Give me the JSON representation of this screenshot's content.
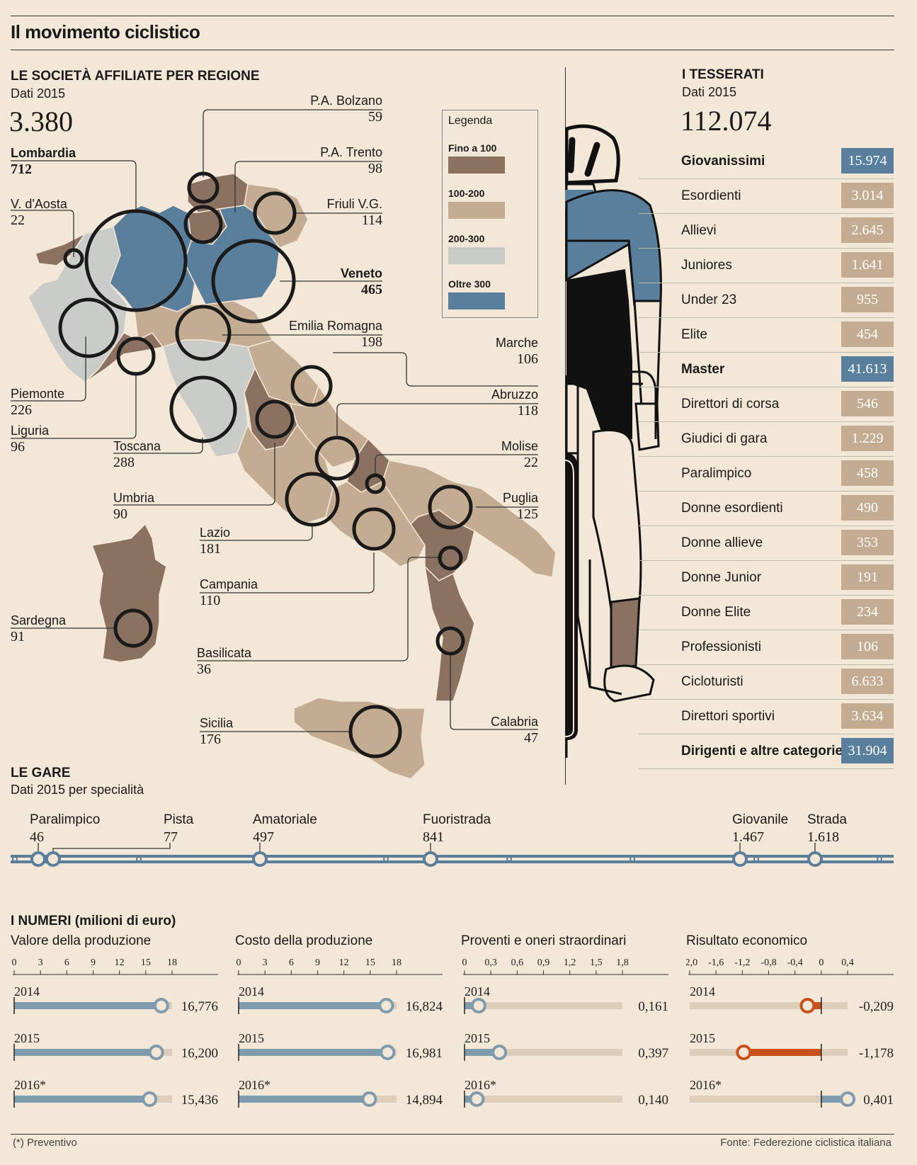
{
  "title": "Il movimento ciclistico",
  "societa": {
    "heading": "LE SOCIETÀ AFFILIATE PER REGIONE",
    "subtitle": "Dati 2015",
    "total": "3.380",
    "regions": [
      {
        "name": "Lombardia",
        "value": "712",
        "bold": true
      },
      {
        "name": "V. d'Aosta",
        "value": "22"
      },
      {
        "name": "P.A. Bolzano",
        "value": "59"
      },
      {
        "name": "P.A. Trento",
        "value": "98"
      },
      {
        "name": "Friuli V.G.",
        "value": "114"
      },
      {
        "name": "Veneto",
        "value": "465",
        "bold": true
      },
      {
        "name": "Emilia Romagna",
        "value": "198"
      },
      {
        "name": "Piemonte",
        "value": "226"
      },
      {
        "name": "Liguria",
        "value": "96"
      },
      {
        "name": "Toscana",
        "value": "288"
      },
      {
        "name": "Marche",
        "value": "106"
      },
      {
        "name": "Abruzzo",
        "value": "118"
      },
      {
        "name": "Molise",
        "value": "22"
      },
      {
        "name": "Umbria",
        "value": "90"
      },
      {
        "name": "Lazio",
        "value": "181"
      },
      {
        "name": "Puglia",
        "value": "125"
      },
      {
        "name": "Campania",
        "value": "110"
      },
      {
        "name": "Sardegna",
        "value": "91"
      },
      {
        "name": "Basilicata",
        "value": "36"
      },
      {
        "name": "Sicilia",
        "value": "176"
      },
      {
        "name": "Calabria",
        "value": "47"
      }
    ],
    "legend": {
      "title": "Legenda",
      "items": [
        {
          "label": "Fino a 100",
          "color": "#8b7260"
        },
        {
          "label": "100-200",
          "color": "#c4ac93"
        },
        {
          "label": "200-300",
          "color": "#c9ccc9"
        },
        {
          "label": "Oltre 300",
          "color": "#5a7f9c"
        }
      ]
    }
  },
  "tesserati": {
    "heading": "I TESSERATI",
    "subtitle": "Dati 2015",
    "total": "112.074",
    "rows": [
      {
        "name": "Giovanissimi",
        "value": "15.974",
        "highlight": true
      },
      {
        "name": "Esordienti",
        "value": "3.014"
      },
      {
        "name": "Allievi",
        "value": "2.645"
      },
      {
        "name": "Juniores",
        "value": "1.641"
      },
      {
        "name": "Under 23",
        "value": "955"
      },
      {
        "name": "Elite",
        "value": "454"
      },
      {
        "name": "Master",
        "value": "41.613",
        "highlight": true
      },
      {
        "name": "Direttori di corsa",
        "value": "546"
      },
      {
        "name": "Giudici di gara",
        "value": "1.229"
      },
      {
        "name": "Paralimpico",
        "value": "458"
      },
      {
        "name": "Donne esordienti",
        "value": "490"
      },
      {
        "name": "Donne allieve",
        "value": "353"
      },
      {
        "name": "Donne Junior",
        "value": "191"
      },
      {
        "name": "Donne Elite",
        "value": "234"
      },
      {
        "name": "Professionisti",
        "value": "106"
      },
      {
        "name": "Cicloturisti",
        "value": "6.633"
      },
      {
        "name": "Direttori sportivi",
        "value": "3.634"
      },
      {
        "name": "Dirigenti e altre categorie",
        "value": "31.904",
        "highlight": true
      }
    ],
    "colors": {
      "highlight": "#5a7f9c",
      "normal": "#c4ac93"
    }
  },
  "gare": {
    "heading": "LE GARE",
    "subtitle": "Dati 2015 per specialità",
    "items": [
      {
        "name": "Paralimpico",
        "value": "46"
      },
      {
        "name": "Pista",
        "value": "77"
      },
      {
        "name": "Amatoriale",
        "value": "497"
      },
      {
        "name": "Fuoristrada",
        "value": "841"
      },
      {
        "name": "Giovanile",
        "value": "1.467"
      },
      {
        "name": "Strada",
        "value": "1.618"
      }
    ]
  },
  "chart_data": [
    {
      "type": "bar",
      "title": "Valore della produzione",
      "categories": [
        "2014",
        "2015",
        "2016*"
      ],
      "values": [
        16.776,
        16.2,
        15.436
      ],
      "labels": [
        "16,776",
        "16,200",
        "15,436"
      ],
      "ticks": [
        "0",
        "3",
        "6",
        "9",
        "12",
        "15",
        "18"
      ],
      "xlim": [
        0,
        18
      ]
    },
    {
      "type": "bar",
      "title": "Costo della produzione",
      "categories": [
        "2014",
        "2015",
        "2016*"
      ],
      "values": [
        16.824,
        16.981,
        14.894
      ],
      "labels": [
        "16,824",
        "16,981",
        "14,894"
      ],
      "ticks": [
        "0",
        "3",
        "6",
        "9",
        "12",
        "15",
        "18"
      ],
      "xlim": [
        0,
        18
      ]
    },
    {
      "type": "bar",
      "title": "Proventi e oneri straordinari",
      "categories": [
        "2014",
        "2015",
        "2016*"
      ],
      "values": [
        0.161,
        0.397,
        0.14
      ],
      "labels": [
        "0,161",
        "0,397",
        "0,140"
      ],
      "ticks": [
        "0",
        "0,3",
        "0,6",
        "0,9",
        "1,2",
        "1,5",
        "1,8"
      ],
      "xlim": [
        0,
        1.8
      ]
    },
    {
      "type": "bar",
      "title": "Risultato economico",
      "categories": [
        "2014",
        "2015",
        "2016*"
      ],
      "values": [
        -0.209,
        -1.178,
        0.401
      ],
      "labels": [
        "-0,209",
        "-1,178",
        "0,401"
      ],
      "ticks": [
        "-2,0",
        "-1,6",
        "-1,2",
        "-0,8",
        "-0,4",
        "0",
        "0,4"
      ],
      "xlim": [
        -2.0,
        0.4
      ]
    }
  ],
  "numeri": {
    "heading": "I NUMERI (milioni di euro)",
    "colors": {
      "positive": "#7f9caf",
      "negative": "#c8501a",
      "track": "#ddcdbb"
    }
  },
  "footer": {
    "note": "(*) Preventivo",
    "source": "Fonte: Federezione ciclistica italiana"
  }
}
